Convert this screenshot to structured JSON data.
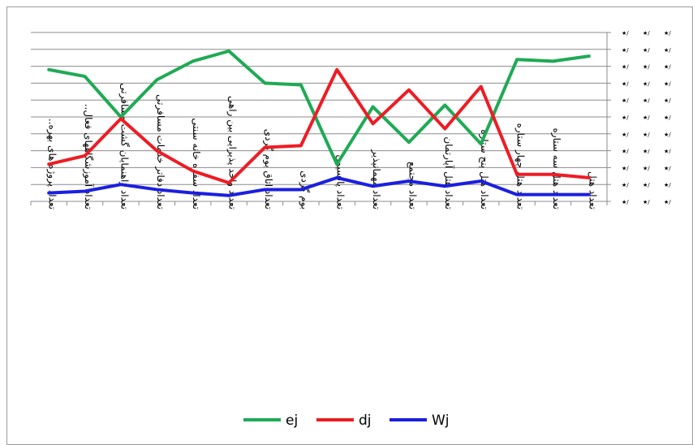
{
  "chart_data": {
    "type": "line",
    "title": "",
    "xlabel": "",
    "ylabel": "",
    "ylim": [
      0,
      10
    ],
    "grid": true,
    "legend_position": "bottom",
    "y_tick_label_note": "right-axis tick labels render as unreadable star/symbol glyphs",
    "categories": [
      "تعداد پروژه های بهره..",
      "تعداد آموزشگاههای فعال..",
      "تعداد راهنمایان گشت مسافرتی",
      "تعداد دفاتر خدمات مسافرتی",
      "تعداد سفره خانه سنتی",
      "تعداد واحد پذیرایی بین راهی",
      "تعداد اتاق بوم گردی",
      "بوم گردی",
      "تعداد پانسیون",
      "تعداد مهمانپذیر",
      "تعداد مجتمع",
      "تعداد هتل آپارتمان",
      "تعداد هتل پنج ستاره",
      "تعداد هتل چهار ستاره",
      "تعداد هتل سه ستاره",
      "تعداد هتل"
    ],
    "series": [
      {
        "name": "ej",
        "color": "#1faa55",
        "values": [
          7.8,
          7.4,
          5.0,
          7.2,
          8.3,
          8.9,
          7.0,
          6.9,
          2.2,
          5.6,
          3.5,
          5.7,
          3.4,
          8.4,
          8.3,
          8.6
        ]
      },
      {
        "name": "dj",
        "color": "#ee1c24",
        "values": [
          2.2,
          2.7,
          4.9,
          3.0,
          1.8,
          1.1,
          3.2,
          3.3,
          7.8,
          4.6,
          6.6,
          4.3,
          6.8,
          1.6,
          1.6,
          1.4
        ]
      },
      {
        "name": "Wj",
        "color": "#1b1fe0",
        "values": [
          0.5,
          0.6,
          1.0,
          0.7,
          0.5,
          0.35,
          0.7,
          0.7,
          1.4,
          0.9,
          1.2,
          0.9,
          1.2,
          0.4,
          0.4,
          0.4
        ]
      }
    ]
  },
  "legend": {
    "items": [
      {
        "label": "ej",
        "color": "#1faa55"
      },
      {
        "label": "dj",
        "color": "#ee1c24"
      },
      {
        "label": "Wj",
        "color": "#1b1fe0"
      }
    ]
  }
}
